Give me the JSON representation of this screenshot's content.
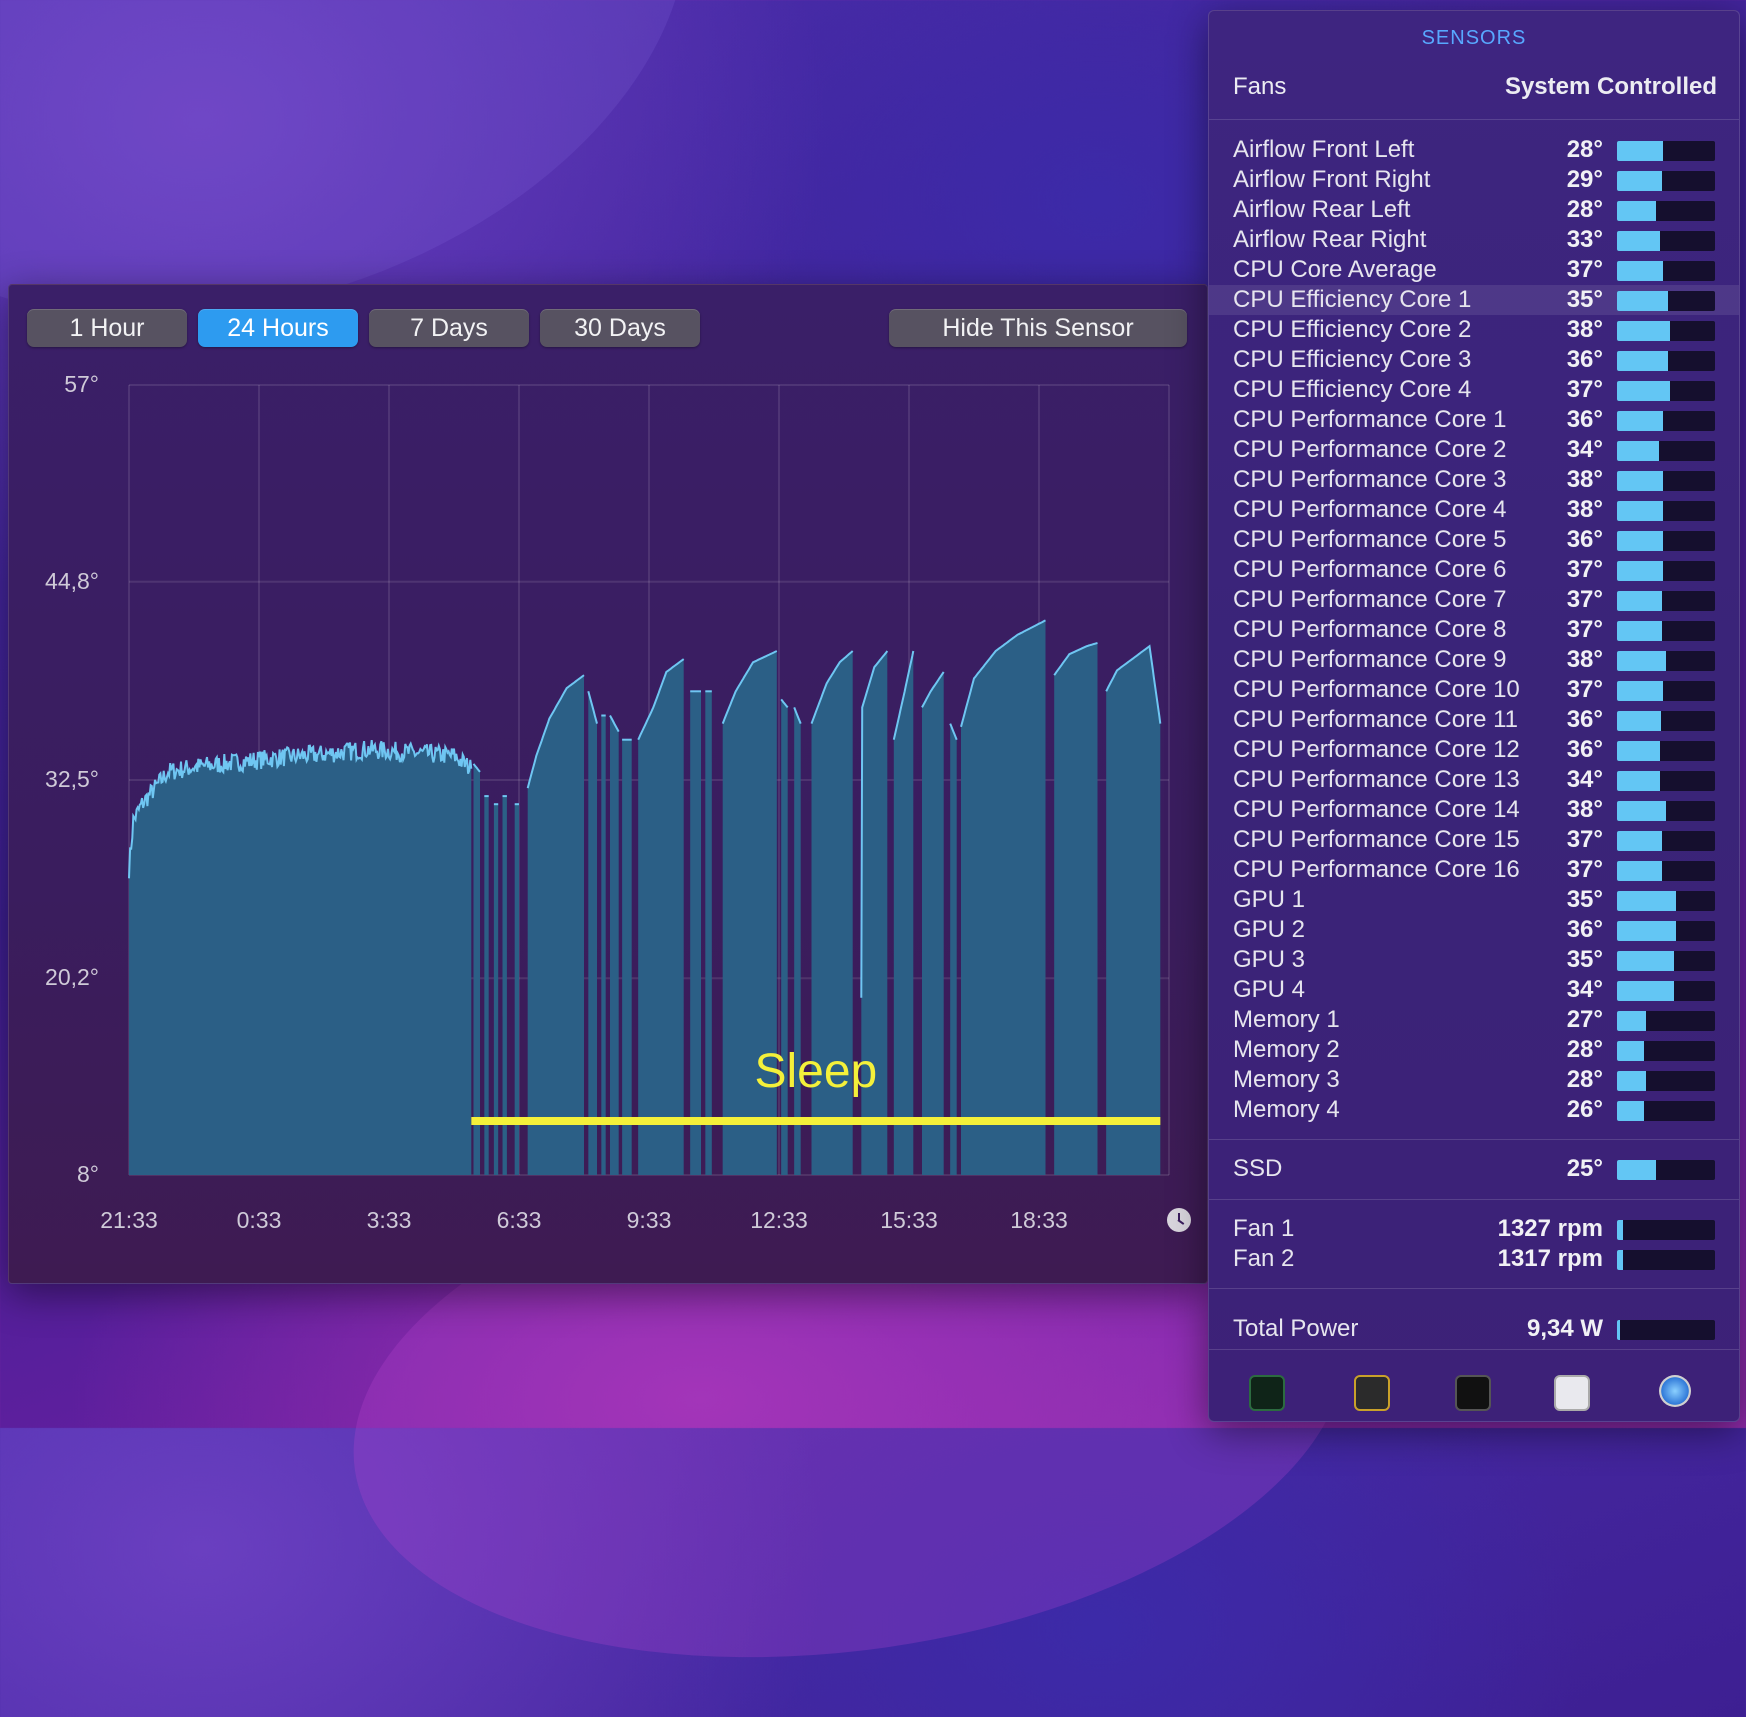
{
  "chart_window": {
    "buttons": [
      {
        "label": "1 Hour",
        "active": false
      },
      {
        "label": "24 Hours",
        "active": true
      },
      {
        "label": "7 Days",
        "active": false
      },
      {
        "label": "30 Days",
        "active": false
      }
    ],
    "hide_button": "Hide This Sensor",
    "annotation": "Sleep"
  },
  "chart_data": {
    "type": "area",
    "y_ticks": [
      "57°",
      "44,8°",
      "32,5°",
      "20,2°",
      "8°"
    ],
    "y_tick_values": [
      57,
      44.8,
      32.5,
      20.2,
      8
    ],
    "ylim": [
      8,
      57
    ],
    "x_ticks": [
      "21:33",
      "0:33",
      "3:33",
      "6:33",
      "9:33",
      "12:33",
      "15:33",
      "18:33"
    ],
    "x_tick_hours": [
      0,
      3,
      6,
      9,
      12,
      15,
      18,
      21
    ],
    "xlim_hours": [
      0,
      24
    ],
    "grid": true,
    "sleep_range_hours": [
      7.9,
      23.8
    ],
    "series_color": "#2b5f86",
    "line_color": "#6fc6f2",
    "annotation_color": "#f4f03a",
    "awake_segments": [
      {
        "start": 0.0,
        "end": 7.9,
        "points": [
          [
            0.0,
            27
          ],
          [
            0.1,
            30
          ],
          [
            0.3,
            31
          ],
          [
            0.6,
            32
          ],
          [
            0.9,
            33
          ],
          [
            1.5,
            33.3
          ],
          [
            2.5,
            33.6
          ],
          [
            3.5,
            33.9
          ],
          [
            4.5,
            34.1
          ],
          [
            5.5,
            34.4
          ],
          [
            6.5,
            34.2
          ],
          [
            7.5,
            34.0
          ],
          [
            7.9,
            33.2
          ]
        ]
      },
      {
        "start": 7.95,
        "end": 8.1,
        "points": [
          [
            7.95,
            33.5
          ],
          [
            8.1,
            33
          ]
        ]
      },
      {
        "start": 8.2,
        "end": 8.3,
        "points": [
          [
            8.2,
            31.5
          ],
          [
            8.3,
            31.5
          ]
        ]
      },
      {
        "start": 8.42,
        "end": 8.52,
        "points": [
          [
            8.42,
            31
          ],
          [
            8.52,
            31
          ]
        ]
      },
      {
        "start": 8.62,
        "end": 8.72,
        "points": [
          [
            8.62,
            31.5
          ],
          [
            8.72,
            31.5
          ]
        ]
      },
      {
        "start": 8.9,
        "end": 9.0,
        "points": [
          [
            8.9,
            31
          ],
          [
            9.0,
            31
          ]
        ]
      },
      {
        "start": 9.2,
        "end": 10.5,
        "points": [
          [
            9.2,
            32
          ],
          [
            9.4,
            34
          ],
          [
            9.7,
            36.3
          ],
          [
            10.1,
            38.2
          ],
          [
            10.5,
            39
          ]
        ]
      },
      {
        "start": 10.6,
        "end": 10.8,
        "points": [
          [
            10.6,
            38
          ],
          [
            10.8,
            36
          ]
        ]
      },
      {
        "start": 10.9,
        "end": 11.0,
        "points": [
          [
            10.9,
            36.5
          ],
          [
            11.0,
            36.5
          ]
        ]
      },
      {
        "start": 11.1,
        "end": 11.3,
        "points": [
          [
            11.1,
            36.5
          ],
          [
            11.3,
            35.5
          ]
        ]
      },
      {
        "start": 11.38,
        "end": 11.6,
        "points": [
          [
            11.38,
            35
          ],
          [
            11.6,
            35
          ]
        ]
      },
      {
        "start": 11.75,
        "end": 12.8,
        "points": [
          [
            11.75,
            35
          ],
          [
            12.1,
            37
          ],
          [
            12.4,
            39.2
          ],
          [
            12.8,
            40
          ]
        ]
      },
      {
        "start": 12.95,
        "end": 13.2,
        "points": [
          [
            12.95,
            38
          ],
          [
            13.2,
            38
          ]
        ]
      },
      {
        "start": 13.3,
        "end": 13.45,
        "points": [
          [
            13.3,
            38
          ],
          [
            13.45,
            38
          ]
        ]
      },
      {
        "start": 13.7,
        "end": 14.95,
        "points": [
          [
            13.7,
            36
          ],
          [
            14.0,
            38
          ],
          [
            14.4,
            39.8
          ],
          [
            14.95,
            40.5
          ]
        ]
      },
      {
        "start": 15.05,
        "end": 15.2,
        "points": [
          [
            15.05,
            37.5
          ],
          [
            15.2,
            37
          ]
        ]
      },
      {
        "start": 15.35,
        "end": 15.5,
        "points": [
          [
            15.35,
            37
          ],
          [
            15.5,
            36
          ]
        ]
      },
      {
        "start": 15.75,
        "end": 16.7,
        "points": [
          [
            15.75,
            36
          ],
          [
            16.1,
            38.5
          ],
          [
            16.4,
            39.8
          ],
          [
            16.7,
            40.5
          ]
        ]
      },
      {
        "start": 16.9,
        "end": 17.5,
        "points": [
          [
            16.9,
            19
          ],
          [
            16.92,
            37
          ],
          [
            17.2,
            39.5
          ],
          [
            17.5,
            40.5
          ]
        ]
      },
      {
        "start": 17.65,
        "end": 18.1,
        "points": [
          [
            17.65,
            35
          ],
          [
            17.9,
            38
          ],
          [
            18.1,
            40.5
          ]
        ]
      },
      {
        "start": 18.3,
        "end": 18.8,
        "points": [
          [
            18.3,
            37
          ],
          [
            18.5,
            38
          ],
          [
            18.8,
            39.2
          ]
        ]
      },
      {
        "start": 18.95,
        "end": 19.1,
        "points": [
          [
            18.95,
            36
          ],
          [
            19.1,
            35
          ]
        ]
      },
      {
        "start": 19.2,
        "end": 21.15,
        "points": [
          [
            19.2,
            35.8
          ],
          [
            19.5,
            38.8
          ],
          [
            20.0,
            40.5
          ],
          [
            20.5,
            41.5
          ],
          [
            21.15,
            42.4
          ]
        ]
      },
      {
        "start": 21.35,
        "end": 22.35,
        "points": [
          [
            21.35,
            39
          ],
          [
            21.7,
            40.3
          ],
          [
            22.1,
            40.8
          ],
          [
            22.35,
            41
          ]
        ]
      },
      {
        "start": 22.55,
        "end": 23.8,
        "points": [
          [
            22.55,
            38
          ],
          [
            22.8,
            39.3
          ],
          [
            23.3,
            40.3
          ],
          [
            23.55,
            40.8
          ],
          [
            23.8,
            36
          ]
        ]
      }
    ]
  },
  "sensors": {
    "title": "SENSORS",
    "fans_label": "Fans",
    "fans_mode": "System Controlled",
    "temps": [
      {
        "name": "Airflow Front Left",
        "value": "28°",
        "level": 0.47
      },
      {
        "name": "Airflow Front Right",
        "value": "29°",
        "level": 0.46
      },
      {
        "name": "Airflow Rear Left",
        "value": "28°",
        "level": 0.4
      },
      {
        "name": "Airflow Rear Right",
        "value": "33°",
        "level": 0.44
      },
      {
        "name": "CPU Core Average",
        "value": "37°",
        "level": 0.47
      },
      {
        "name": "CPU Efficiency Core 1",
        "value": "35°",
        "level": 0.52,
        "highlight": true
      },
      {
        "name": "CPU Efficiency Core 2",
        "value": "38°",
        "level": 0.54
      },
      {
        "name": "CPU Efficiency Core 3",
        "value": "36°",
        "level": 0.52
      },
      {
        "name": "CPU Efficiency Core 4",
        "value": "37°",
        "level": 0.54
      },
      {
        "name": "CPU Performance Core 1",
        "value": "36°",
        "level": 0.47
      },
      {
        "name": "CPU Performance Core 2",
        "value": "34°",
        "level": 0.43
      },
      {
        "name": "CPU Performance Core 3",
        "value": "38°",
        "level": 0.47
      },
      {
        "name": "CPU Performance Core 4",
        "value": "38°",
        "level": 0.47
      },
      {
        "name": "CPU Performance Core 5",
        "value": "36°",
        "level": 0.47
      },
      {
        "name": "CPU Performance Core 6",
        "value": "37°",
        "level": 0.47
      },
      {
        "name": "CPU Performance Core 7",
        "value": "37°",
        "level": 0.46
      },
      {
        "name": "CPU Performance Core 8",
        "value": "37°",
        "level": 0.46
      },
      {
        "name": "CPU Performance Core 9",
        "value": "38°",
        "level": 0.5
      },
      {
        "name": "CPU Performance Core 10",
        "value": "37°",
        "level": 0.47
      },
      {
        "name": "CPU Performance Core 11",
        "value": "36°",
        "level": 0.45
      },
      {
        "name": "CPU Performance Core 12",
        "value": "36°",
        "level": 0.44
      },
      {
        "name": "CPU Performance Core 13",
        "value": "34°",
        "level": 0.44
      },
      {
        "name": "CPU Performance Core 14",
        "value": "38°",
        "level": 0.5
      },
      {
        "name": "CPU Performance Core 15",
        "value": "37°",
        "level": 0.46
      },
      {
        "name": "CPU Performance Core 16",
        "value": "37°",
        "level": 0.46
      },
      {
        "name": "GPU 1",
        "value": "35°",
        "level": 0.6
      },
      {
        "name": "GPU 2",
        "value": "36°",
        "level": 0.6
      },
      {
        "name": "GPU 3",
        "value": "35°",
        "level": 0.58
      },
      {
        "name": "GPU 4",
        "value": "34°",
        "level": 0.58
      },
      {
        "name": "Memory 1",
        "value": "27°",
        "level": 0.3
      },
      {
        "name": "Memory 2",
        "value": "28°",
        "level": 0.28
      },
      {
        "name": "Memory 3",
        "value": "28°",
        "level": 0.3
      },
      {
        "name": "Memory 4",
        "value": "26°",
        "level": 0.28
      }
    ],
    "ssd": {
      "name": "SSD",
      "value": "25°",
      "level": 0.4
    },
    "fans": [
      {
        "name": "Fan 1",
        "value": "1327 rpm",
        "level": 0.06
      },
      {
        "name": "Fan 2",
        "value": "1317 rpm",
        "level": 0.06
      }
    ],
    "power": {
      "name": "Total Power",
      "value": "9,34 W",
      "level": 0.03
    }
  },
  "dock": [
    {
      "name": "activity-monitor-icon"
    },
    {
      "name": "console-icon"
    },
    {
      "name": "terminal-icon"
    },
    {
      "name": "system-information-icon"
    },
    {
      "name": "disk-utility-icon"
    }
  ]
}
